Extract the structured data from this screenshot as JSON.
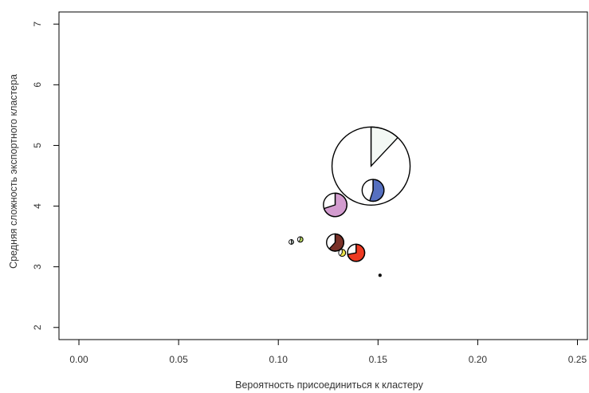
{
  "chart_data": {
    "type": "scatter",
    "variant": "bubble-pie",
    "title": "",
    "xlabel": "Вероятность присоединиться к кластеру",
    "ylabel": "Средняя сложность экспортного кластера",
    "xlim": [
      -0.01,
      0.255
    ],
    "ylim": [
      1.8,
      7.2
    ],
    "xticks": [
      "0.00",
      "0.05",
      "0.10",
      "0.15",
      "0.20",
      "0.25"
    ],
    "yticks": [
      "2",
      "3",
      "4",
      "5",
      "6",
      "7"
    ],
    "grid": false,
    "legend": "none",
    "points": [
      {
        "x": 0.1465,
        "y": 4.66,
        "size": 1.0,
        "color": "#f3f8f4",
        "share": 0.12
      },
      {
        "x": 0.1475,
        "y": 4.26,
        "size": 0.28,
        "color": "#5670c0",
        "share": 0.55
      },
      {
        "x": 0.1285,
        "y": 4.02,
        "size": 0.3,
        "color": "#d39ccf",
        "share": 0.7
      },
      {
        "x": 0.1285,
        "y": 3.4,
        "size": 0.22,
        "color": "#7a3128",
        "share": 0.62
      },
      {
        "x": 0.139,
        "y": 3.23,
        "size": 0.22,
        "color": "#ee3a22",
        "share": 0.72
      },
      {
        "x": 0.132,
        "y": 3.23,
        "size": 0.09,
        "color": "#e9e24a",
        "share": 0.6
      },
      {
        "x": 0.111,
        "y": 3.45,
        "size": 0.07,
        "color": "#bad866",
        "share": 0.6
      },
      {
        "x": 0.1065,
        "y": 3.41,
        "size": 0.06,
        "color": "#9aa49e",
        "share": 0.5
      },
      {
        "x": 0.151,
        "y": 2.86,
        "size": 0.02,
        "color": "#111111",
        "share": 1.0
      }
    ]
  }
}
